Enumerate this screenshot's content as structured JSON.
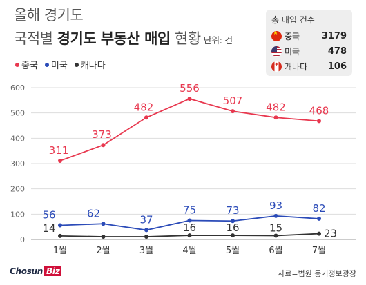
{
  "title_line1": "올해 경기도",
  "title_line2_prefix": "국적별 ",
  "title_line2_bold": "경기도 부동산 매입",
  "title_line2_suffix": " 현황",
  "unit": "단위: 건",
  "legend": [
    {
      "name": "중국",
      "color": "#e8384f"
    },
    {
      "name": "미국",
      "color": "#2b4bb8"
    },
    {
      "name": "캐나다",
      "color": "#333333"
    }
  ],
  "totals": {
    "title": "총 매입 건수",
    "rows": [
      {
        "name": "중국",
        "value": "3179",
        "flag": "china-flag-icon"
      },
      {
        "name": "미국",
        "value": "478",
        "flag": "usa-flag-icon"
      },
      {
        "name": "캐나다",
        "value": "106",
        "flag": "canada-flag-icon"
      }
    ]
  },
  "chart_data": {
    "type": "line",
    "categories": [
      "1월",
      "2월",
      "3월",
      "4월",
      "5월",
      "6월",
      "7월"
    ],
    "series": [
      {
        "name": "중국",
        "color": "#e8384f",
        "values": [
          311,
          373,
          482,
          556,
          507,
          482,
          468
        ]
      },
      {
        "name": "미국",
        "color": "#2b4bb8",
        "values": [
          56,
          62,
          37,
          75,
          73,
          93,
          82
        ]
      },
      {
        "name": "캐나다",
        "color": "#333333",
        "values": [
          14,
          11,
          11,
          16,
          16,
          15,
          23
        ]
      }
    ],
    "data_labels": {
      "중국": [
        "311",
        "373",
        "482",
        "556",
        "507",
        "482",
        "468"
      ],
      "미국": [
        "56",
        "62",
        "37",
        "75",
        "73",
        "93",
        "82"
      ],
      "캐나다": [
        "14",
        "",
        "",
        "16",
        "16",
        "15",
        "23"
      ]
    },
    "yticks": [
      0,
      100,
      200,
      300,
      400,
      500,
      600
    ],
    "ylim": [
      0,
      600
    ],
    "grid": true
  },
  "footer": {
    "logo_main": "Chosun",
    "logo_sub": "Biz",
    "source": "자료=법원 등기정보광장"
  }
}
